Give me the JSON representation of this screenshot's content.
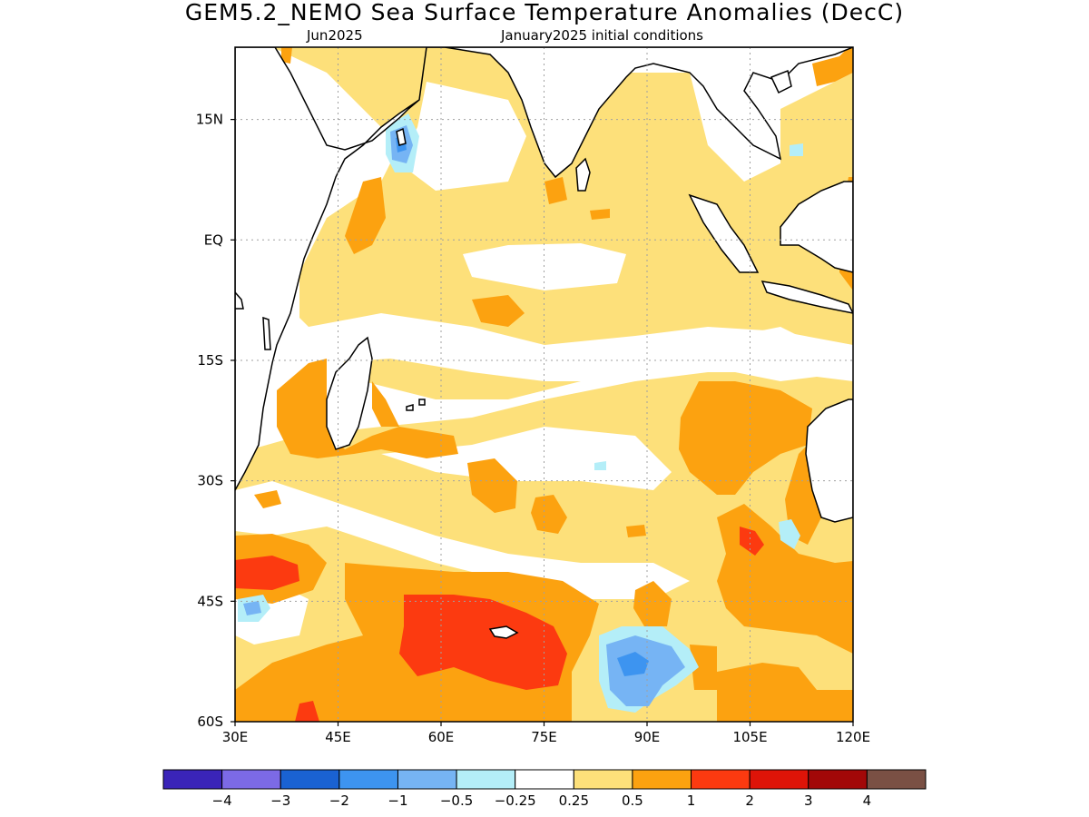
{
  "title": "GEM5.2_NEMO Sea Surface Temperature Anomalies (DecC)",
  "subtitle_left": "Jun2025",
  "subtitle_right": "January2025 initial conditions",
  "colors": {
    "map_frame": "#000000",
    "gridline": "#a0a0a0",
    "coastline": "#000000"
  },
  "map": {
    "lon_range": [
      30,
      120
    ],
    "lat_range": [
      -60,
      24
    ],
    "lon_ticks": [
      {
        "value": 30,
        "label": "30E"
      },
      {
        "value": 45,
        "label": "45E"
      },
      {
        "value": 60,
        "label": "60E"
      },
      {
        "value": 75,
        "label": "75E"
      },
      {
        "value": 90,
        "label": "90E"
      },
      {
        "value": 105,
        "label": "105E"
      },
      {
        "value": 120,
        "label": "120E"
      }
    ],
    "lat_ticks": [
      {
        "value": 15,
        "label": "15N"
      },
      {
        "value": 0,
        "label": "EQ"
      },
      {
        "value": -15,
        "label": "15S"
      },
      {
        "value": -30,
        "label": "30S"
      },
      {
        "value": -45,
        "label": "45S"
      },
      {
        "value": -60,
        "label": "60S"
      }
    ],
    "grid": true,
    "grid_style": "dotted"
  },
  "colorbar": {
    "bins": [
      {
        "color": "#3a24b8"
      },
      {
        "color": "#7c6ae6"
      },
      {
        "color": "#1a62d2"
      },
      {
        "color": "#3d94f0"
      },
      {
        "color": "#76b4f4"
      },
      {
        "color": "#b4eef8"
      },
      {
        "color": "#ffffff"
      },
      {
        "color": "#fde07a"
      },
      {
        "color": "#fca210"
      },
      {
        "color": "#fc3a10"
      },
      {
        "color": "#de1408"
      },
      {
        "color": "#a20808"
      },
      {
        "color": "#7a5044"
      }
    ],
    "labels": [
      "−4",
      "−3",
      "−2",
      "−1",
      "−0.5",
      "−0.25",
      "0.25",
      "0.5",
      "1",
      "2",
      "3",
      "4"
    ]
  },
  "anomaly_fields": {
    "shading": [
      {
        "name": "weak-warm",
        "color": "#fde07a"
      },
      {
        "name": "moderate-warm",
        "color": "#fca210"
      },
      {
        "name": "strong-warm",
        "color": "#fc3a10"
      },
      {
        "name": "weak-cool",
        "color": "#b4eef8"
      },
      {
        "name": "moderate-cool",
        "color": "#76b4f4"
      },
      {
        "name": "strong-cool",
        "color": "#3d94f0"
      }
    ]
  }
}
